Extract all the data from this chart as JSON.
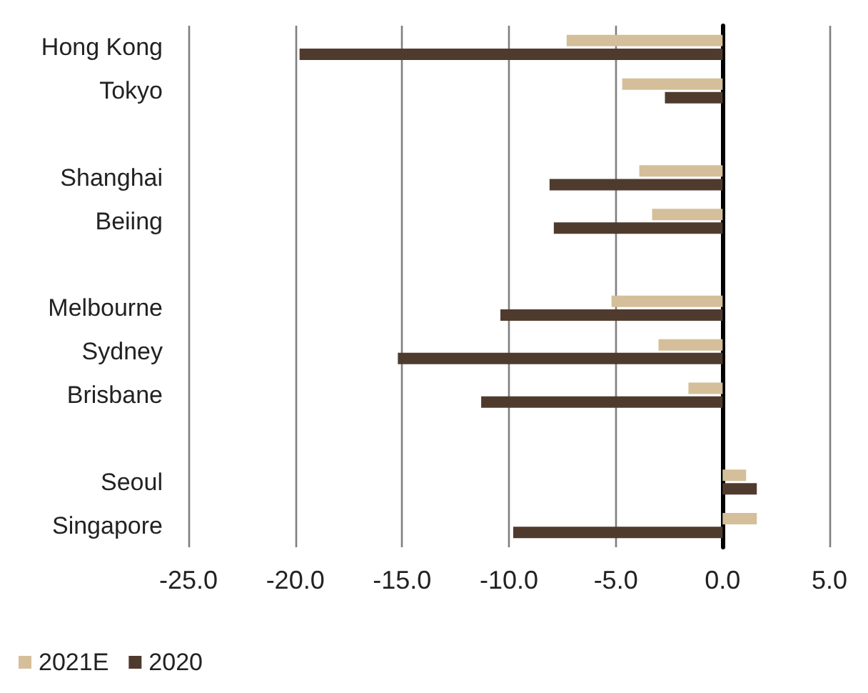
{
  "chart_data": {
    "type": "bar",
    "orientation": "horizontal",
    "categories": [
      "Hong Kong",
      "Tokyo",
      null,
      "Shanghai",
      "Beiing",
      null,
      "Melbourne",
      "Sydney",
      "Brisbane",
      null,
      "Seoul",
      "Singapore"
    ],
    "series": [
      {
        "name": "2021E",
        "color": "#d4bf9a",
        "values": [
          -7.3,
          -4.7,
          null,
          -3.9,
          -3.3,
          null,
          -5.2,
          -3.0,
          -1.6,
          null,
          1.1,
          1.6
        ]
      },
      {
        "name": "2020",
        "color": "#4f3b2e",
        "values": [
          -19.8,
          -2.7,
          null,
          -8.1,
          -7.9,
          null,
          -10.4,
          -15.2,
          -11.3,
          null,
          1.6,
          -9.8
        ]
      }
    ],
    "xlim": [
      -25,
      5
    ],
    "xticks": [
      {
        "value": -25,
        "label": "-25.0"
      },
      {
        "value": -20,
        "label": "-20.0"
      },
      {
        "value": -15,
        "label": "-15.0"
      },
      {
        "value": -10,
        "label": "-10.0"
      },
      {
        "value": -5,
        "label": "-5.0"
      },
      {
        "value": 0,
        "label": "0.0"
      },
      {
        "value": 5,
        "label": "5.0"
      }
    ],
    "grid": "x",
    "legend": "bottom left"
  }
}
